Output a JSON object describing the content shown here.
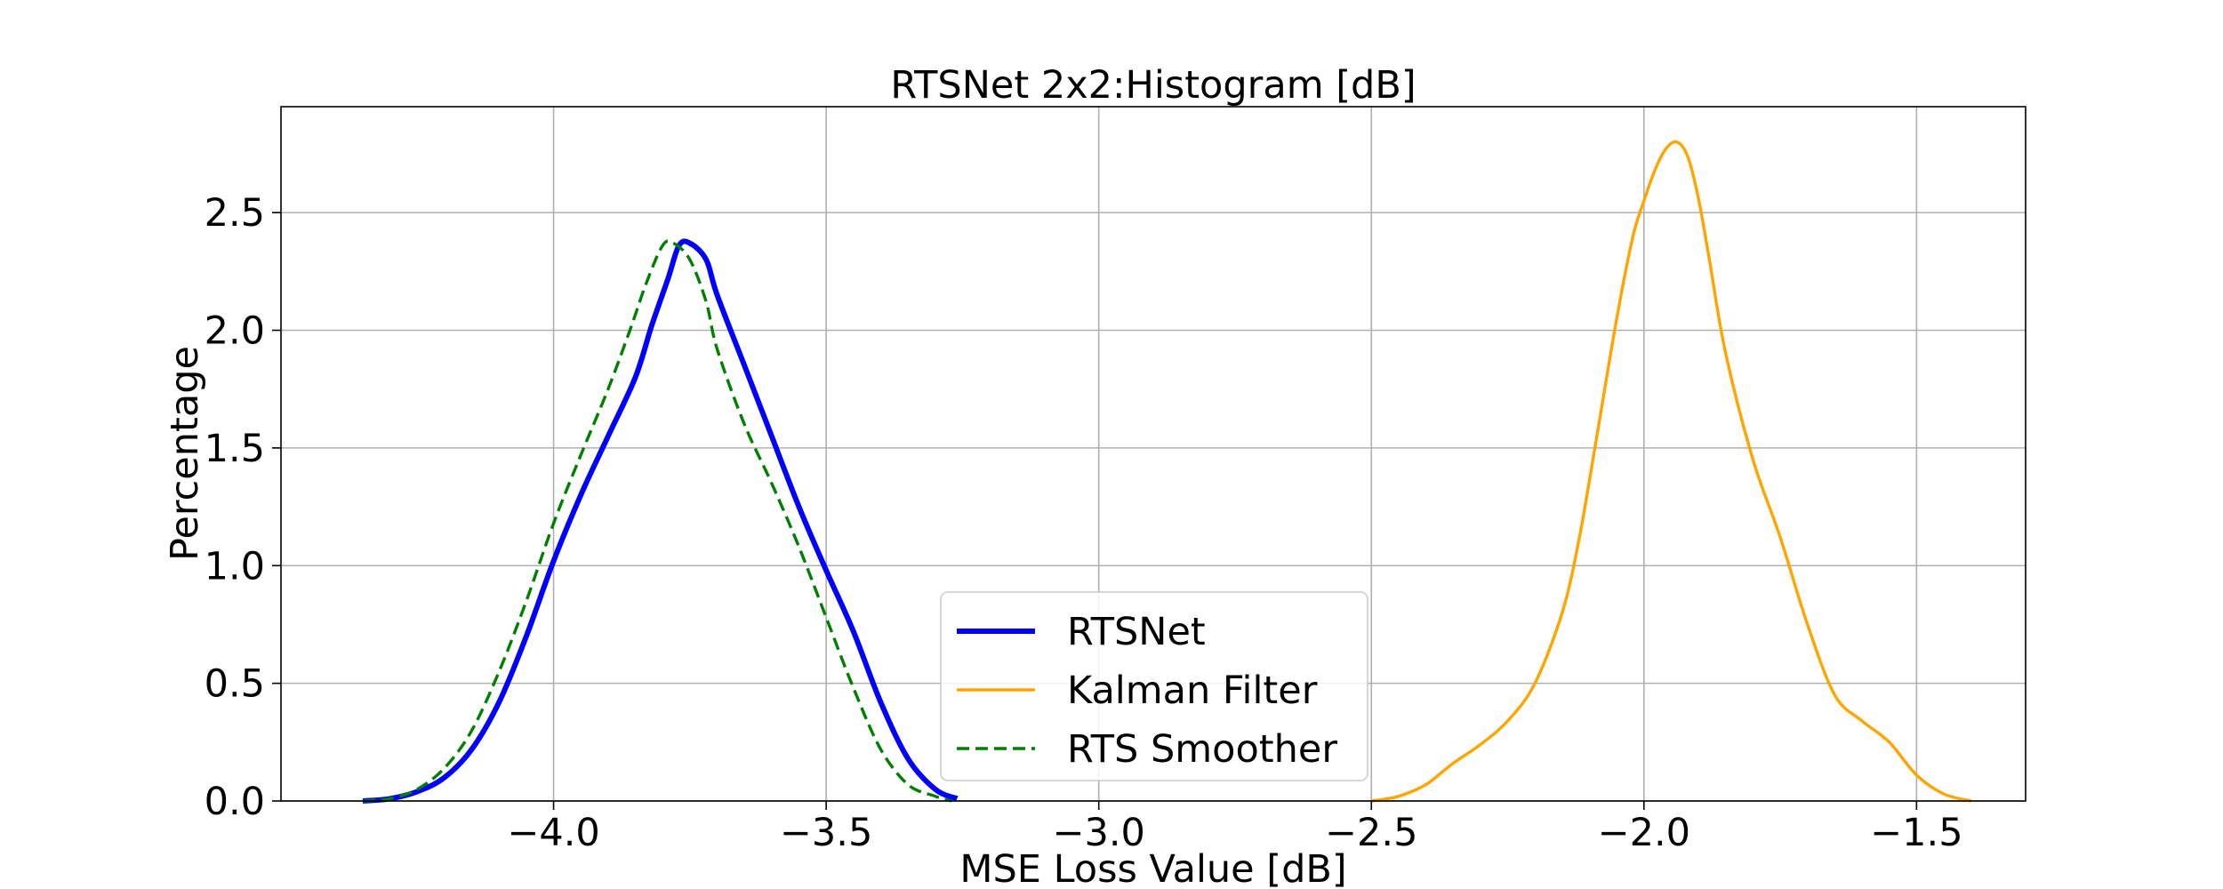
{
  "chart_data": {
    "type": "line",
    "title": "RTSNet 2x2:Histogram [dB]",
    "xlabel": "MSE Loss Value [dB]",
    "ylabel": "Percentage",
    "xlim": [
      -4.5,
      -1.3
    ],
    "ylim": [
      0,
      2.95
    ],
    "grid": true,
    "legend_position": "lower-center",
    "x_ticks": [
      {
        "value": -4.0,
        "label": "−4.0"
      },
      {
        "value": -3.5,
        "label": "−3.5"
      },
      {
        "value": -3.0,
        "label": "−3.0"
      },
      {
        "value": -2.5,
        "label": "−2.5"
      },
      {
        "value": -2.0,
        "label": "−2.0"
      },
      {
        "value": -1.5,
        "label": "−1.5"
      }
    ],
    "y_ticks": [
      {
        "value": 0.0,
        "label": "0.0"
      },
      {
        "value": 0.5,
        "label": "0.5"
      },
      {
        "value": 1.0,
        "label": "1.0"
      },
      {
        "value": 1.5,
        "label": "1.5"
      },
      {
        "value": 2.0,
        "label": "2.0"
      },
      {
        "value": 2.5,
        "label": "2.5"
      }
    ],
    "series": [
      {
        "name": "RTSNet",
        "color": "#0000ff",
        "style": "solid",
        "width": "thick",
        "points": [
          [
            -4.35,
            0.0
          ],
          [
            -4.3,
            0.01
          ],
          [
            -4.25,
            0.04
          ],
          [
            -4.2,
            0.1
          ],
          [
            -4.15,
            0.22
          ],
          [
            -4.1,
            0.42
          ],
          [
            -4.05,
            0.7
          ],
          [
            -4.0,
            1.02
          ],
          [
            -3.95,
            1.3
          ],
          [
            -3.9,
            1.55
          ],
          [
            -3.85,
            1.8
          ],
          [
            -3.82,
            2.02
          ],
          [
            -3.79,
            2.22
          ],
          [
            -3.77,
            2.36
          ],
          [
            -3.75,
            2.37
          ],
          [
            -3.72,
            2.3
          ],
          [
            -3.7,
            2.15
          ],
          [
            -3.65,
            1.85
          ],
          [
            -3.6,
            1.55
          ],
          [
            -3.55,
            1.25
          ],
          [
            -3.5,
            0.98
          ],
          [
            -3.45,
            0.72
          ],
          [
            -3.4,
            0.42
          ],
          [
            -3.35,
            0.18
          ],
          [
            -3.3,
            0.05
          ],
          [
            -3.26,
            0.01
          ]
        ]
      },
      {
        "name": "Kalman Filter",
        "color": "#ffa500",
        "style": "solid",
        "width": "normal",
        "points": [
          [
            -2.5,
            0.0
          ],
          [
            -2.45,
            0.02
          ],
          [
            -2.4,
            0.07
          ],
          [
            -2.35,
            0.16
          ],
          [
            -2.3,
            0.24
          ],
          [
            -2.25,
            0.34
          ],
          [
            -2.2,
            0.5
          ],
          [
            -2.15,
            0.8
          ],
          [
            -2.12,
            1.1
          ],
          [
            -2.09,
            1.5
          ],
          [
            -2.05,
            2.05
          ],
          [
            -2.02,
            2.4
          ],
          [
            -2.0,
            2.55
          ],
          [
            -1.98,
            2.68
          ],
          [
            -1.96,
            2.77
          ],
          [
            -1.94,
            2.8
          ],
          [
            -1.92,
            2.74
          ],
          [
            -1.9,
            2.56
          ],
          [
            -1.88,
            2.3
          ],
          [
            -1.85,
            1.9
          ],
          [
            -1.8,
            1.45
          ],
          [
            -1.75,
            1.12
          ],
          [
            -1.7,
            0.75
          ],
          [
            -1.65,
            0.45
          ],
          [
            -1.6,
            0.34
          ],
          [
            -1.55,
            0.25
          ],
          [
            -1.5,
            0.11
          ],
          [
            -1.45,
            0.03
          ],
          [
            -1.4,
            0.0
          ]
        ]
      },
      {
        "name": "RTS Smoother",
        "color": "#008000",
        "style": "dashed",
        "width": "normal",
        "points": [
          [
            -4.35,
            0.0
          ],
          [
            -4.3,
            0.01
          ],
          [
            -4.25,
            0.05
          ],
          [
            -4.2,
            0.14
          ],
          [
            -4.15,
            0.3
          ],
          [
            -4.1,
            0.55
          ],
          [
            -4.05,
            0.85
          ],
          [
            -4.0,
            1.18
          ],
          [
            -3.95,
            1.47
          ],
          [
            -3.9,
            1.75
          ],
          [
            -3.86,
            2.0
          ],
          [
            -3.83,
            2.2
          ],
          [
            -3.8,
            2.36
          ],
          [
            -3.78,
            2.37
          ],
          [
            -3.75,
            2.3
          ],
          [
            -3.72,
            2.12
          ],
          [
            -3.7,
            1.92
          ],
          [
            -3.65,
            1.6
          ],
          [
            -3.6,
            1.35
          ],
          [
            -3.55,
            1.08
          ],
          [
            -3.5,
            0.78
          ],
          [
            -3.45,
            0.48
          ],
          [
            -3.4,
            0.22
          ],
          [
            -3.35,
            0.07
          ],
          [
            -3.3,
            0.02
          ],
          [
            -3.27,
            0.0
          ]
        ]
      }
    ]
  }
}
